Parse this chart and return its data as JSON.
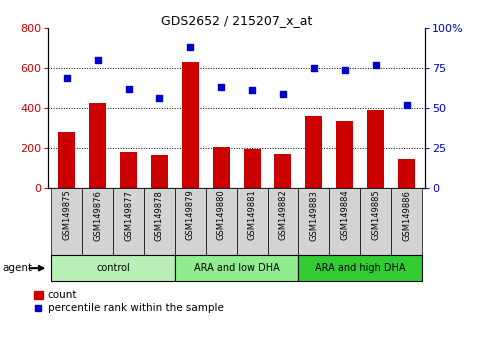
{
  "title": "GDS2652 / 215207_x_at",
  "categories": [
    "GSM149875",
    "GSM149876",
    "GSM149877",
    "GSM149878",
    "GSM149879",
    "GSM149880",
    "GSM149881",
    "GSM149882",
    "GSM149883",
    "GSM149884",
    "GSM149885",
    "GSM149886"
  ],
  "bar_values": [
    280,
    425,
    180,
    165,
    630,
    205,
    195,
    170,
    360,
    335,
    390,
    145
  ],
  "scatter_values": [
    69,
    80,
    62,
    56,
    88,
    63,
    61,
    59,
    75,
    74,
    77,
    52
  ],
  "bar_color": "#cc0000",
  "scatter_color": "#0000cc",
  "left_ylim": [
    0,
    800
  ],
  "left_yticks": [
    0,
    200,
    400,
    600,
    800
  ],
  "right_ylim": [
    0,
    100
  ],
  "right_yticks": [
    0,
    25,
    50,
    75,
    100
  ],
  "right_yticklabels": [
    "0",
    "25",
    "50",
    "75",
    "100%"
  ],
  "groups": [
    {
      "label": "control",
      "start": 0,
      "end": 3,
      "color": "#b8f0b8"
    },
    {
      "label": "ARA and low DHA",
      "start": 4,
      "end": 7,
      "color": "#90ee90"
    },
    {
      "label": "ARA and high DHA",
      "start": 8,
      "end": 11,
      "color": "#32cd32"
    }
  ],
  "agent_label": "agent",
  "legend_bar_label": "count",
  "legend_scatter_label": "percentile rank within the sample",
  "grid_color": "black",
  "bg_color": "#ffffff",
  "tick_label_color_left": "#cc0000",
  "tick_label_color_right": "#0000cc"
}
